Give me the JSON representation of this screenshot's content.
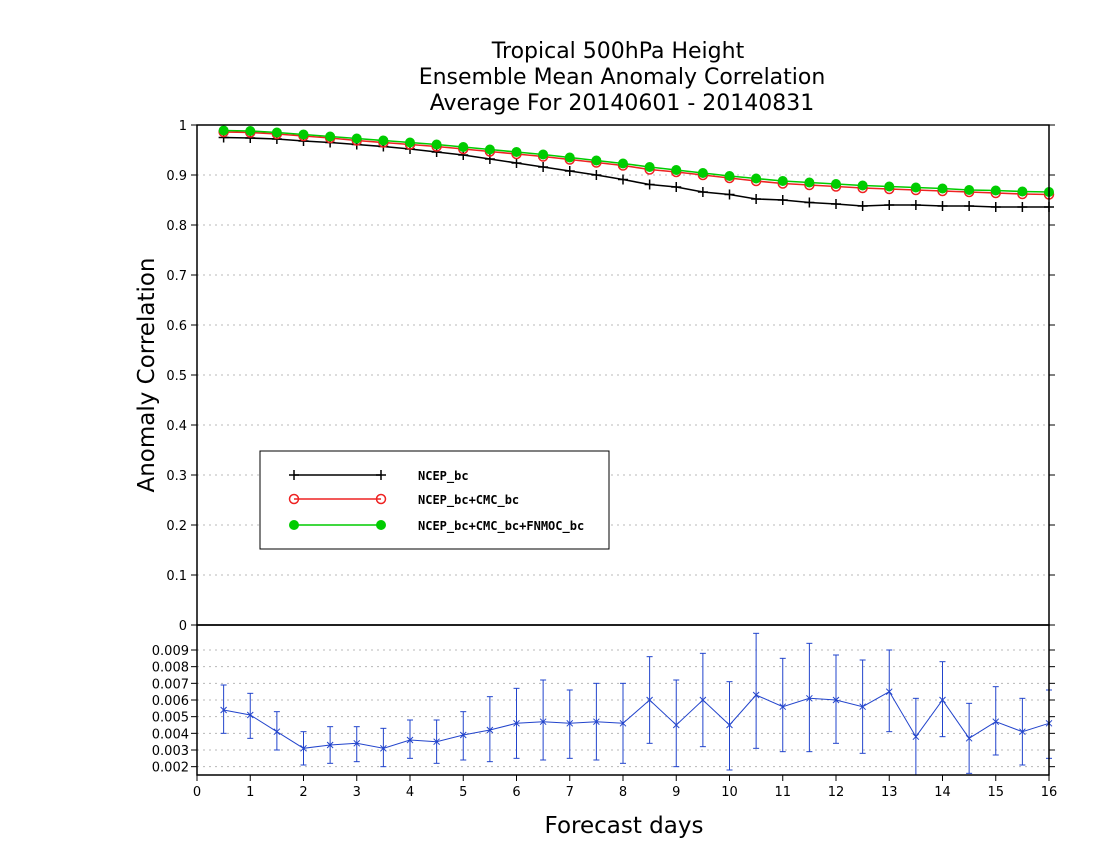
{
  "chart_data": [
    {
      "type": "line",
      "title": [
        "Tropical 500hPa Height",
        "Ensemble Mean Anomaly Correlation",
        "Average For 20140601 - 20140831"
      ],
      "ylabel": "Anomaly Correlation",
      "xlim": [
        0,
        16
      ],
      "ylim": [
        0,
        1
      ],
      "y_ticks": [
        "0",
        "0.1",
        "0.2",
        "0.3",
        "0.4",
        "0.5",
        "0.6",
        "0.7",
        "0.8",
        "0.9",
        "1"
      ],
      "grid": true,
      "legend": "left",
      "x": [
        0.5,
        1,
        1.5,
        2,
        2.5,
        3,
        3.5,
        4,
        4.5,
        5,
        5.5,
        6,
        6.5,
        7,
        7.5,
        8,
        8.5,
        9,
        9.5,
        10,
        10.5,
        11,
        11.5,
        12,
        12.5,
        13,
        13.5,
        14,
        14.5,
        15,
        15.5,
        16
      ],
      "series": [
        {
          "name": "NCEP_bc",
          "color": "#000000",
          "marker": "plus",
          "values": [
            0.975,
            0.974,
            0.972,
            0.968,
            0.965,
            0.961,
            0.957,
            0.952,
            0.946,
            0.94,
            0.932,
            0.924,
            0.916,
            0.908,
            0.9,
            0.891,
            0.881,
            0.876,
            0.866,
            0.861,
            0.852,
            0.85,
            0.845,
            0.842,
            0.838,
            0.84,
            0.84,
            0.838,
            0.838,
            0.836,
            0.836,
            0.836
          ]
        },
        {
          "name": "NCEP_bc+CMC_bc",
          "color": "#ee2222",
          "marker": "open-circle",
          "values": [
            0.986,
            0.985,
            0.982,
            0.978,
            0.974,
            0.969,
            0.965,
            0.961,
            0.957,
            0.952,
            0.947,
            0.942,
            0.937,
            0.931,
            0.925,
            0.919,
            0.911,
            0.906,
            0.9,
            0.894,
            0.888,
            0.883,
            0.88,
            0.877,
            0.874,
            0.872,
            0.87,
            0.868,
            0.866,
            0.864,
            0.862,
            0.861
          ]
        },
        {
          "name": "NCEP_bc+CMC_bc+FNMOC_bc",
          "color": "#00cc00",
          "marker": "filled-circle",
          "values": [
            0.989,
            0.988,
            0.985,
            0.981,
            0.977,
            0.973,
            0.969,
            0.965,
            0.961,
            0.956,
            0.951,
            0.946,
            0.941,
            0.935,
            0.929,
            0.923,
            0.916,
            0.91,
            0.904,
            0.898,
            0.893,
            0.888,
            0.885,
            0.882,
            0.879,
            0.877,
            0.875,
            0.873,
            0.87,
            0.869,
            0.867,
            0.866
          ]
        }
      ]
    },
    {
      "type": "line",
      "xlabel": "Forecast days",
      "xlim": [
        0,
        16
      ],
      "ylim": [
        0.0015,
        0.0105
      ],
      "x_ticks": [
        "0",
        "1",
        "2",
        "3",
        "4",
        "5",
        "6",
        "7",
        "8",
        "9",
        "10",
        "11",
        "12",
        "13",
        "14",
        "15",
        "16"
      ],
      "y_ticks": [
        "0.002",
        "0.003",
        "0.004",
        "0.005",
        "0.006",
        "0.007",
        "0.008",
        "0.009"
      ],
      "series": [
        {
          "color": "#2244cc",
          "error_bars": true,
          "x": [
            0.5,
            1,
            1.5,
            2,
            2.5,
            3,
            3.5,
            4,
            4.5,
            5,
            5.5,
            6,
            6.5,
            7,
            7.5,
            8,
            8.5,
            9,
            9.5,
            10,
            10.5,
            11,
            11.5,
            12,
            12.5,
            13,
            13.5,
            14,
            14.5,
            15,
            15.5,
            16
          ],
          "values": [
            0.0054,
            0.0051,
            0.0041,
            0.0031,
            0.0033,
            0.0034,
            0.0031,
            0.0036,
            0.0035,
            0.0039,
            0.0042,
            0.0046,
            0.0047,
            0.0046,
            0.0047,
            0.0046,
            0.006,
            0.0045,
            0.006,
            0.0045,
            0.0063,
            0.0056,
            0.0061,
            0.006,
            0.0056,
            0.0065,
            0.0038,
            0.006,
            0.0037,
            0.0047,
            0.0041,
            0.0046
          ],
          "lower": [
            0.004,
            0.0037,
            0.003,
            0.0021,
            0.0022,
            0.0023,
            0.002,
            0.0025,
            0.0022,
            0.0024,
            0.0023,
            0.0025,
            0.0024,
            0.0025,
            0.0024,
            0.0022,
            0.0034,
            0.002,
            0.0032,
            0.0018,
            0.0031,
            0.0029,
            0.0029,
            0.0034,
            0.0028,
            0.0041,
            0.0015,
            0.0038,
            0.0016,
            0.0027,
            0.0021,
            0.0025
          ],
          "upper": [
            0.0069,
            0.0064,
            0.0053,
            0.0041,
            0.0044,
            0.0044,
            0.0043,
            0.0048,
            0.0048,
            0.0053,
            0.0062,
            0.0067,
            0.0072,
            0.0066,
            0.007,
            0.007,
            0.0086,
            0.0072,
            0.0088,
            0.0071,
            0.01,
            0.0085,
            0.0094,
            0.0087,
            0.0084,
            0.009,
            0.0061,
            0.0083,
            0.0058,
            0.0068,
            0.0061,
            0.0066
          ]
        }
      ]
    }
  ]
}
